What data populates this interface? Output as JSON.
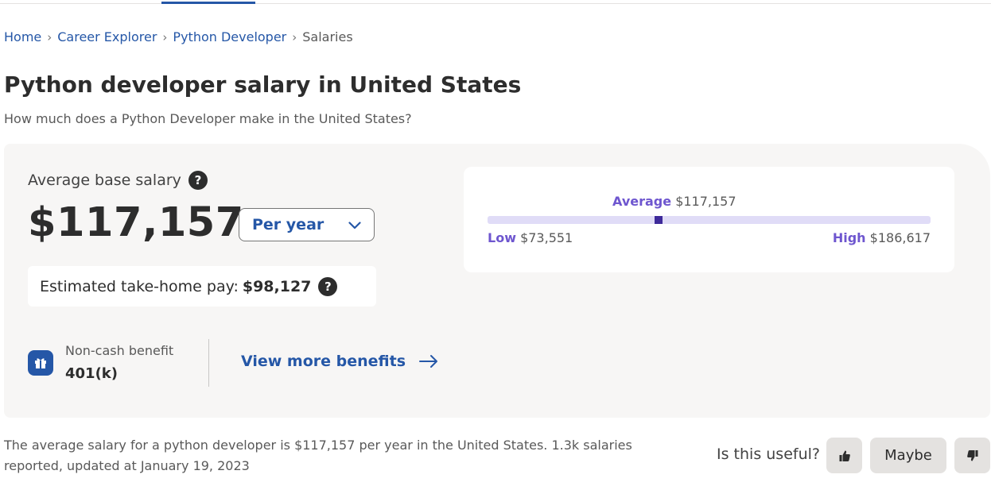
{
  "breadcrumb": {
    "items": [
      "Home",
      "Career Explorer",
      "Python Developer"
    ],
    "current": "Salaries"
  },
  "page": {
    "title": "Python developer salary in United States",
    "subtitle": "How much does a Python Developer make in the United States?"
  },
  "salary": {
    "average_label": "Average base salary",
    "average_value": "$117,157",
    "period_selected": "Per year",
    "takehome_label": "Estimated take-home pay:",
    "takehome_value": "$98,127"
  },
  "benefits": {
    "type_label": "Non-cash benefit",
    "name": "401(k)",
    "more_link": "View more benefits"
  },
  "range": {
    "average_label": "Average",
    "average_value": "$117,157",
    "low_label": "Low",
    "low_value": "$73,551",
    "high_label": "High",
    "high_value": "$186,617",
    "low_num": 73551,
    "high_num": 186617,
    "avg_num": 117157
  },
  "footer": {
    "summary": "The average salary for a python developer is $117,157 per year in the United States.  1.3k salaries reported, updated at January 19, 2023",
    "useful_question": "Is this useful?",
    "maybe_label": "Maybe"
  },
  "icons": {
    "help": "question-circle-icon",
    "dropdown": "chevron-down-icon",
    "benefit": "gift-icon",
    "arrow": "arrow-right-icon",
    "up": "thumbs-up-icon",
    "down": "thumbs-down-icon"
  },
  "colors": {
    "link": "#2557a7",
    "accent_purple": "#6e56cf",
    "marker": "#3e2a9a",
    "bar": "#e0dcf7"
  }
}
